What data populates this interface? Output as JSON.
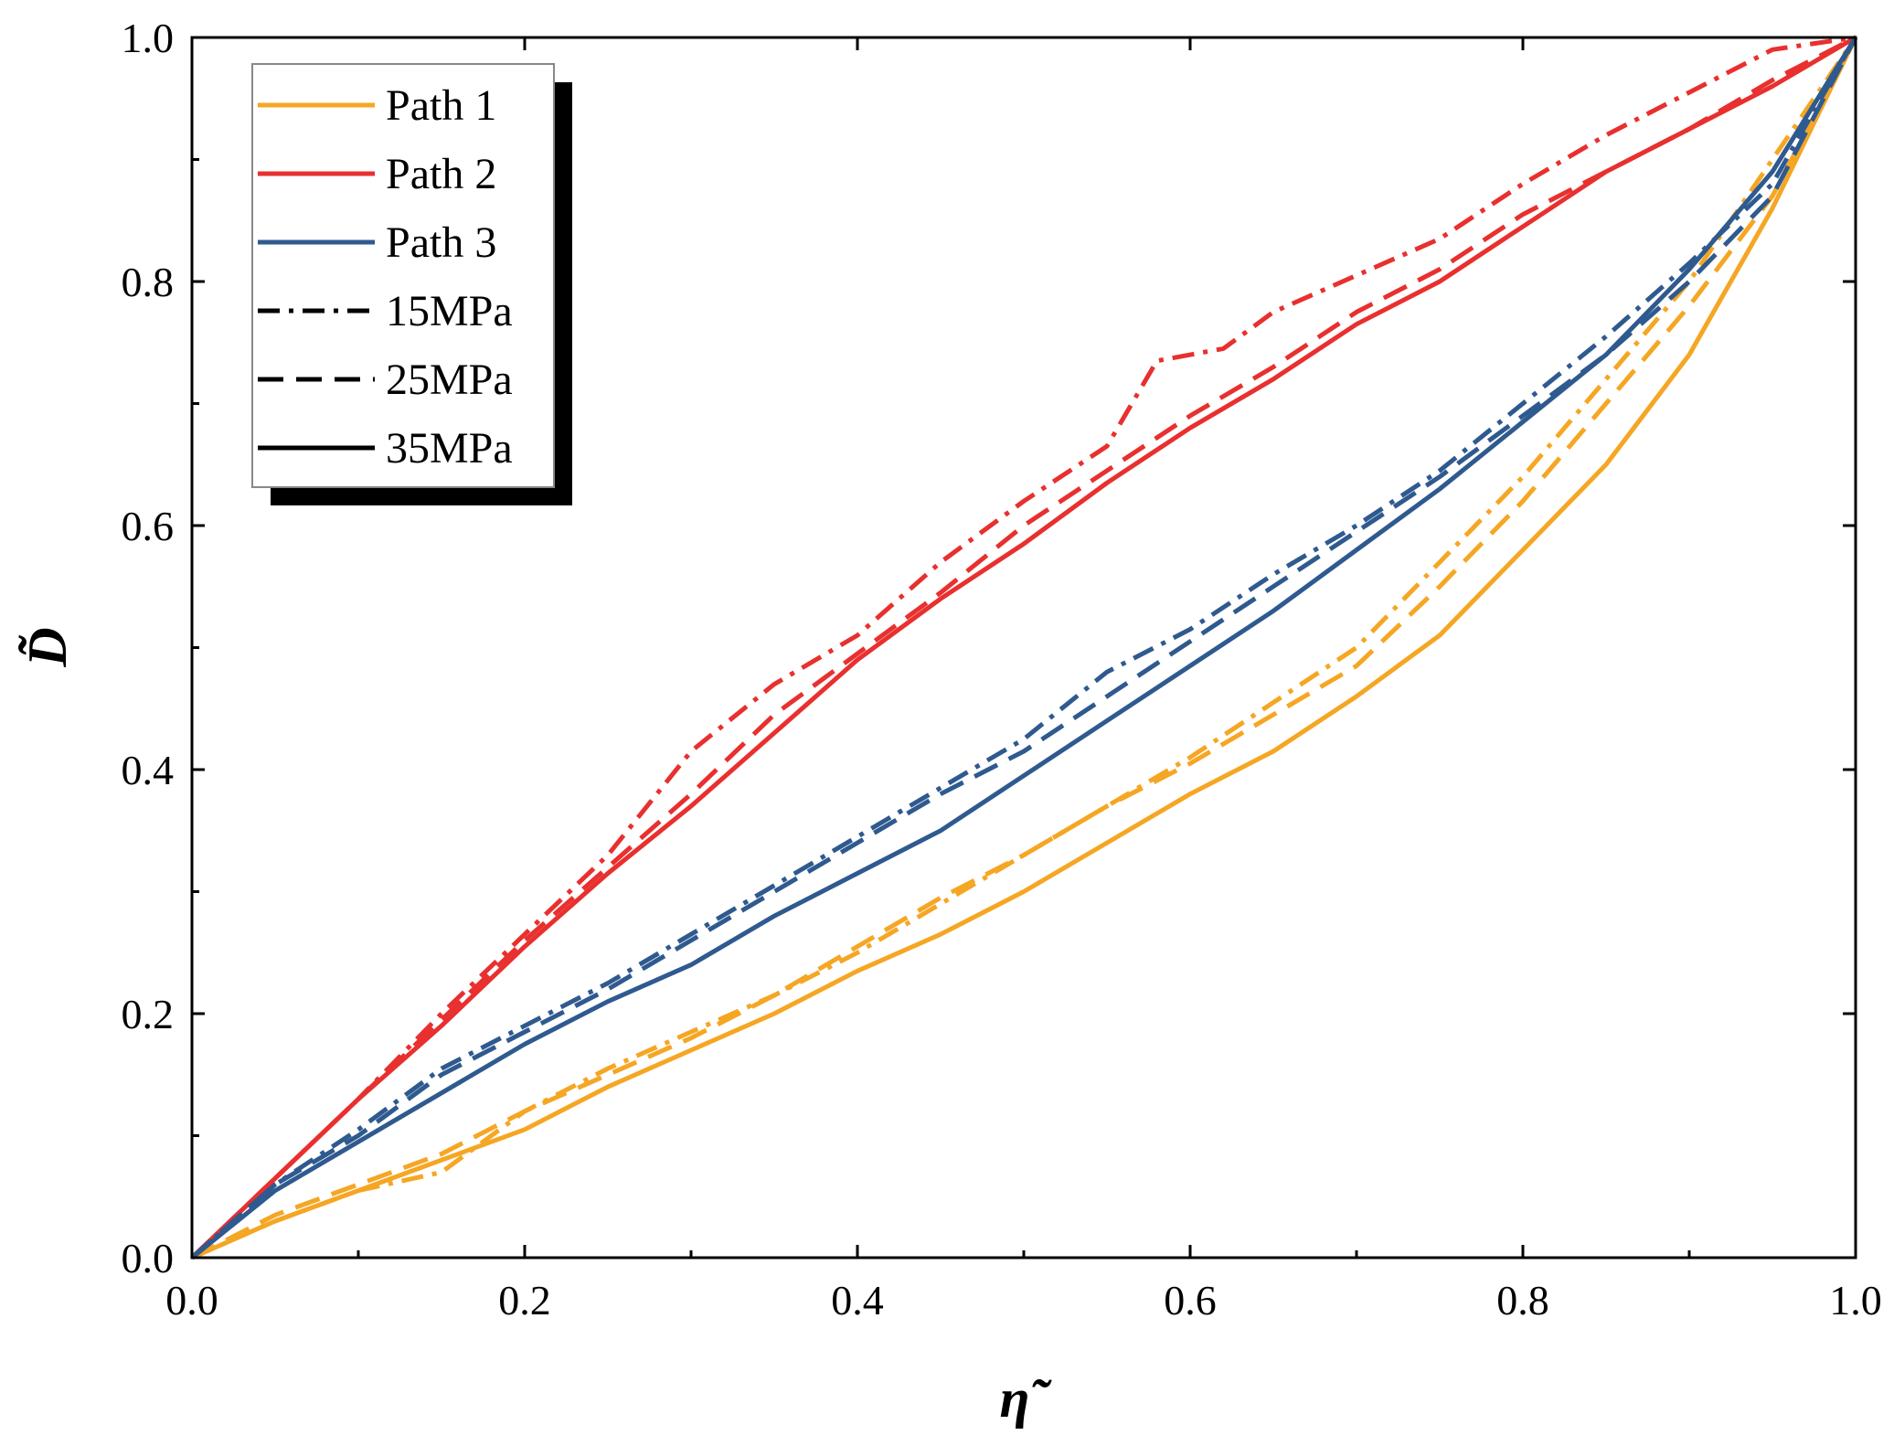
{
  "chart_data": {
    "type": "line",
    "title": "",
    "xlabel": "η̃",
    "ylabel": "D̃",
    "xlim": [
      0,
      1
    ],
    "ylim": [
      0,
      1
    ],
    "xticks": [
      "0.0",
      "0.2",
      "0.4",
      "0.6",
      "0.8",
      "1.0"
    ],
    "yticks": [
      "0.0",
      "0.2",
      "0.4",
      "0.6",
      "0.8",
      "1.0"
    ],
    "legend_position": "top-left",
    "legend": [
      {
        "label": "Path 1",
        "color": "#f5a623",
        "style": "solid"
      },
      {
        "label": "Path 2",
        "color": "#e8302f",
        "style": "solid"
      },
      {
        "label": "Path 3",
        "color": "#2f5a8f",
        "style": "solid"
      },
      {
        "label": "15MPa",
        "color": "#000000",
        "style": "dashdot"
      },
      {
        "label": "25MPa",
        "color": "#000000",
        "style": "dashed"
      },
      {
        "label": "35MPa",
        "color": "#000000",
        "style": "solid"
      }
    ],
    "series": [
      {
        "name": "Path 1 - 15MPa",
        "color": "#f5a623",
        "style": "dashdot",
        "x": [
          0,
          0.05,
          0.1,
          0.15,
          0.2,
          0.25,
          0.3,
          0.35,
          0.4,
          0.45,
          0.5,
          0.55,
          0.6,
          0.65,
          0.7,
          0.75,
          0.8,
          0.85,
          0.9,
          0.95,
          1.0
        ],
        "y": [
          0,
          0.03,
          0.055,
          0.07,
          0.12,
          0.155,
          0.185,
          0.215,
          0.25,
          0.29,
          0.33,
          0.37,
          0.41,
          0.455,
          0.5,
          0.57,
          0.64,
          0.72,
          0.8,
          0.9,
          1.0
        ]
      },
      {
        "name": "Path 1 - 25MPa",
        "color": "#f5a623",
        "style": "dashed",
        "x": [
          0,
          0.05,
          0.1,
          0.15,
          0.2,
          0.25,
          0.3,
          0.35,
          0.4,
          0.45,
          0.5,
          0.55,
          0.6,
          0.65,
          0.7,
          0.75,
          0.8,
          0.85,
          0.9,
          0.95,
          1.0
        ],
        "y": [
          0,
          0.035,
          0.06,
          0.085,
          0.12,
          0.15,
          0.18,
          0.215,
          0.255,
          0.295,
          0.33,
          0.37,
          0.405,
          0.445,
          0.485,
          0.55,
          0.62,
          0.7,
          0.78,
          0.87,
          1.0
        ]
      },
      {
        "name": "Path 1 - 35MPa",
        "color": "#f5a623",
        "style": "solid",
        "x": [
          0,
          0.05,
          0.1,
          0.15,
          0.2,
          0.25,
          0.3,
          0.35,
          0.4,
          0.45,
          0.5,
          0.55,
          0.6,
          0.65,
          0.7,
          0.75,
          0.8,
          0.85,
          0.9,
          0.95,
          1.0
        ],
        "y": [
          0,
          0.03,
          0.055,
          0.08,
          0.105,
          0.14,
          0.17,
          0.2,
          0.235,
          0.265,
          0.3,
          0.34,
          0.38,
          0.415,
          0.46,
          0.51,
          0.58,
          0.65,
          0.74,
          0.86,
          1.0
        ]
      },
      {
        "name": "Path 2 - 15MPa",
        "color": "#e8302f",
        "style": "dashdot",
        "x": [
          0,
          0.05,
          0.1,
          0.15,
          0.2,
          0.25,
          0.3,
          0.35,
          0.4,
          0.45,
          0.5,
          0.55,
          0.58,
          0.62,
          0.65,
          0.7,
          0.75,
          0.8,
          0.85,
          0.9,
          0.95,
          1.0
        ],
        "y": [
          0,
          0.065,
          0.13,
          0.2,
          0.265,
          0.33,
          0.415,
          0.47,
          0.51,
          0.57,
          0.62,
          0.665,
          0.735,
          0.745,
          0.775,
          0.805,
          0.835,
          0.88,
          0.92,
          0.955,
          0.99,
          1.0
        ]
      },
      {
        "name": "Path 2 - 25MPa",
        "color": "#e8302f",
        "style": "dashed",
        "x": [
          0,
          0.05,
          0.1,
          0.15,
          0.2,
          0.25,
          0.3,
          0.35,
          0.4,
          0.45,
          0.5,
          0.55,
          0.6,
          0.65,
          0.7,
          0.75,
          0.8,
          0.85,
          0.9,
          0.95,
          1.0
        ],
        "y": [
          0,
          0.065,
          0.13,
          0.195,
          0.26,
          0.32,
          0.38,
          0.445,
          0.495,
          0.545,
          0.6,
          0.645,
          0.69,
          0.73,
          0.775,
          0.81,
          0.855,
          0.89,
          0.925,
          0.965,
          1.0
        ]
      },
      {
        "name": "Path 2 - 35MPa",
        "color": "#e8302f",
        "style": "solid",
        "x": [
          0,
          0.05,
          0.1,
          0.15,
          0.2,
          0.25,
          0.3,
          0.35,
          0.4,
          0.45,
          0.5,
          0.55,
          0.6,
          0.65,
          0.7,
          0.75,
          0.8,
          0.85,
          0.9,
          0.95,
          1.0
        ],
        "y": [
          0,
          0.065,
          0.13,
          0.19,
          0.255,
          0.315,
          0.37,
          0.43,
          0.49,
          0.54,
          0.585,
          0.635,
          0.68,
          0.72,
          0.765,
          0.8,
          0.845,
          0.89,
          0.925,
          0.96,
          1.0
        ]
      },
      {
        "name": "Path 3 - 15MPa",
        "color": "#2f5a8f",
        "style": "dashdot",
        "x": [
          0,
          0.05,
          0.1,
          0.15,
          0.2,
          0.25,
          0.3,
          0.35,
          0.4,
          0.45,
          0.5,
          0.55,
          0.6,
          0.65,
          0.7,
          0.75,
          0.8,
          0.85,
          0.9,
          0.95,
          1.0
        ],
        "y": [
          0,
          0.06,
          0.105,
          0.155,
          0.19,
          0.225,
          0.265,
          0.305,
          0.345,
          0.385,
          0.425,
          0.48,
          0.515,
          0.56,
          0.6,
          0.645,
          0.7,
          0.755,
          0.815,
          0.88,
          1.0
        ]
      },
      {
        "name": "Path 3 - 25MPa",
        "color": "#2f5a8f",
        "style": "dashed",
        "x": [
          0,
          0.05,
          0.1,
          0.15,
          0.2,
          0.25,
          0.3,
          0.35,
          0.4,
          0.45,
          0.5,
          0.55,
          0.6,
          0.65,
          0.7,
          0.75,
          0.8,
          0.85,
          0.9,
          0.95,
          1.0
        ],
        "y": [
          0,
          0.06,
          0.1,
          0.15,
          0.185,
          0.22,
          0.26,
          0.3,
          0.34,
          0.38,
          0.415,
          0.46,
          0.505,
          0.55,
          0.595,
          0.64,
          0.69,
          0.74,
          0.8,
          0.87,
          1.0
        ]
      },
      {
        "name": "Path 3 - 35MPa",
        "color": "#2f5a8f",
        "style": "solid",
        "x": [
          0,
          0.05,
          0.1,
          0.15,
          0.2,
          0.25,
          0.3,
          0.35,
          0.4,
          0.45,
          0.5,
          0.55,
          0.6,
          0.65,
          0.7,
          0.75,
          0.8,
          0.85,
          0.9,
          0.95,
          1.0
        ],
        "y": [
          0,
          0.055,
          0.095,
          0.135,
          0.175,
          0.21,
          0.24,
          0.28,
          0.315,
          0.35,
          0.395,
          0.44,
          0.485,
          0.53,
          0.58,
          0.63,
          0.685,
          0.74,
          0.81,
          0.89,
          1.0
        ]
      }
    ]
  }
}
